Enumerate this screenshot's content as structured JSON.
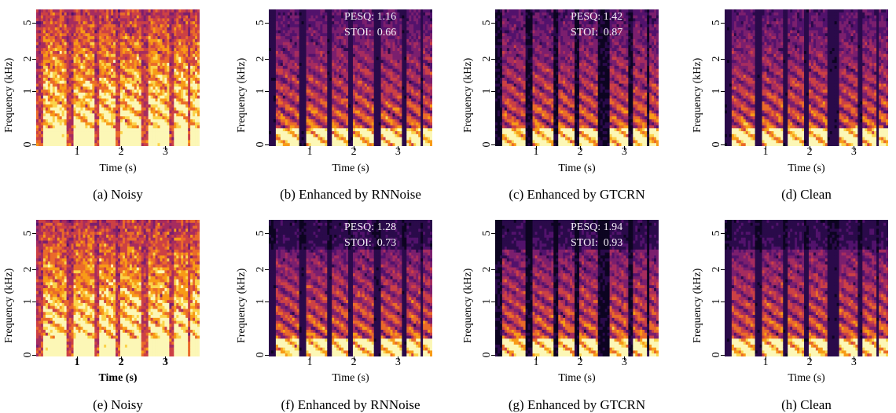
{
  "axes": {
    "ylabel": "Frequency (kHz)",
    "xlabel": "Time (s)",
    "yticks": [
      "0",
      "1",
      "2",
      "5"
    ],
    "xticks": [
      "1",
      "2",
      "3"
    ]
  },
  "panels": [
    {
      "caption": "(a) Noisy",
      "xlabel_bold": false,
      "metrics": null
    },
    {
      "caption": "(b) Enhanced by RNNoise",
      "xlabel_bold": false,
      "metrics": {
        "pesq": "PESQ: 1.16",
        "stoi": "STOI:  0.66"
      }
    },
    {
      "caption": "(c) Enhanced by GTCRN",
      "xlabel_bold": false,
      "metrics": {
        "pesq": "PESQ: 1.42",
        "stoi": "STOI:  0.87"
      }
    },
    {
      "caption": "(d) Clean",
      "xlabel_bold": false,
      "metrics": null
    },
    {
      "caption": "(e) Noisy",
      "xlabel_bold": true,
      "metrics": null
    },
    {
      "caption": "(f) Enhanced by RNNoise",
      "xlabel_bold": false,
      "metrics": {
        "pesq": "PESQ: 1.28",
        "stoi": "STOI:  0.73"
      }
    },
    {
      "caption": "(g) Enhanced by GTCRN",
      "xlabel_bold": false,
      "metrics": {
        "pesq": "PESQ: 1.94",
        "stoi": "STOI:  0.93"
      }
    },
    {
      "caption": "(h) Clean",
      "xlabel_bold": false,
      "metrics": null
    }
  ]
}
